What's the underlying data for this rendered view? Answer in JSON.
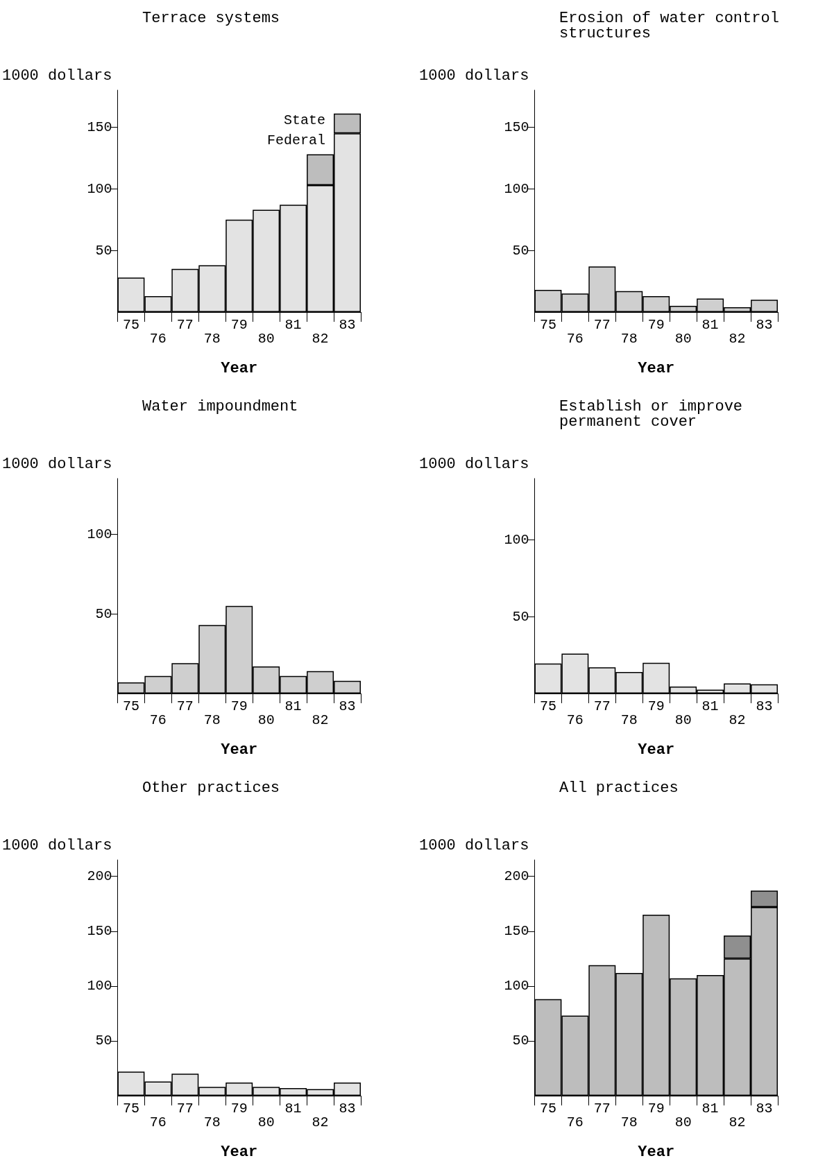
{
  "chart_data": [
    {
      "type": "bar",
      "title": "Terrace systems",
      "ylabel": "1000 dollars",
      "xlabel": "Year",
      "categories": [
        "75",
        "76",
        "77",
        "78",
        "79",
        "80",
        "81",
        "82",
        "83"
      ],
      "stacked": true,
      "ylim": [
        0,
        180
      ],
      "yticks": [
        50,
        100,
        150
      ],
      "grid": false,
      "legend": false,
      "series": [
        {
          "name": "Federal",
          "color": "#e3e3e3",
          "values": [
            28,
            13,
            35,
            38,
            75,
            83,
            87,
            103,
            145
          ]
        },
        {
          "name": "State",
          "color": "#bdbdbd",
          "values": [
            null,
            null,
            null,
            null,
            null,
            null,
            null,
            25,
            16
          ]
        }
      ]
    },
    {
      "type": "bar",
      "title": "Erosion of water control structures",
      "ylabel": "1000 dollars",
      "xlabel": "Year",
      "categories": [
        "75",
        "76",
        "77",
        "78",
        "79",
        "80",
        "81",
        "82",
        "83"
      ],
      "ylim": [
        0,
        180
      ],
      "yticks": [
        50,
        100,
        150
      ],
      "grid": false,
      "legend": false,
      "color": "#cfcfcf",
      "values": [
        18,
        15,
        37,
        17,
        13,
        5,
        11,
        4,
        10
      ]
    },
    {
      "type": "bar",
      "title": "Water impoundment",
      "ylabel": "1000 dollars",
      "xlabel": "Year",
      "categories": [
        "75",
        "76",
        "77",
        "78",
        "79",
        "80",
        "81",
        "82",
        "83"
      ],
      "ylim": [
        0,
        135
      ],
      "yticks": [
        50,
        100
      ],
      "grid": false,
      "legend": false,
      "color": "#cfcfcf",
      "values": [
        7,
        11,
        19,
        43,
        55,
        17,
        11,
        14,
        8
      ]
    },
    {
      "type": "bar",
      "title": "Establish or improve permanent cover",
      "ylabel": "1000 dollars",
      "xlabel": "Year",
      "categories": [
        "75",
        "76",
        "77",
        "78",
        "79",
        "80",
        "81",
        "82",
        "83"
      ],
      "ylim": [
        0,
        140
      ],
      "yticks": [
        50,
        100
      ],
      "grid": false,
      "legend": false,
      "color": "#e3e3e3",
      "values": [
        19.5,
        26,
        17,
        14,
        20,
        4.5,
        2.5,
        6.5,
        6
      ]
    },
    {
      "type": "bar",
      "title": "Other practices",
      "ylabel": "1000 dollars",
      "xlabel": "Year",
      "categories": [
        "75",
        "76",
        "77",
        "78",
        "79",
        "80",
        "81",
        "82",
        "83"
      ],
      "ylim": [
        0,
        215
      ],
      "yticks": [
        50,
        100,
        150,
        200
      ],
      "grid": false,
      "legend": false,
      "color": "#e3e3e3",
      "values": [
        22,
        13,
        20,
        8,
        12,
        8,
        7,
        6,
        12
      ]
    },
    {
      "type": "bar",
      "title": "All practices",
      "ylabel": "1000 dollars",
      "xlabel": "Year",
      "categories": [
        "75",
        "76",
        "77",
        "78",
        "79",
        "80",
        "81",
        "82",
        "83"
      ],
      "stacked": true,
      "ylim": [
        0,
        215
      ],
      "yticks": [
        50,
        100,
        150,
        200
      ],
      "grid": false,
      "legend": false,
      "series": [
        {
          "color": "#bdbdbd",
          "values": [
            88,
            73,
            119,
            112,
            165,
            107,
            110,
            125,
            172
          ]
        },
        {
          "color": "#8f8f8f",
          "values": [
            null,
            null,
            null,
            null,
            null,
            null,
            null,
            21,
            15
          ]
        }
      ]
    }
  ]
}
